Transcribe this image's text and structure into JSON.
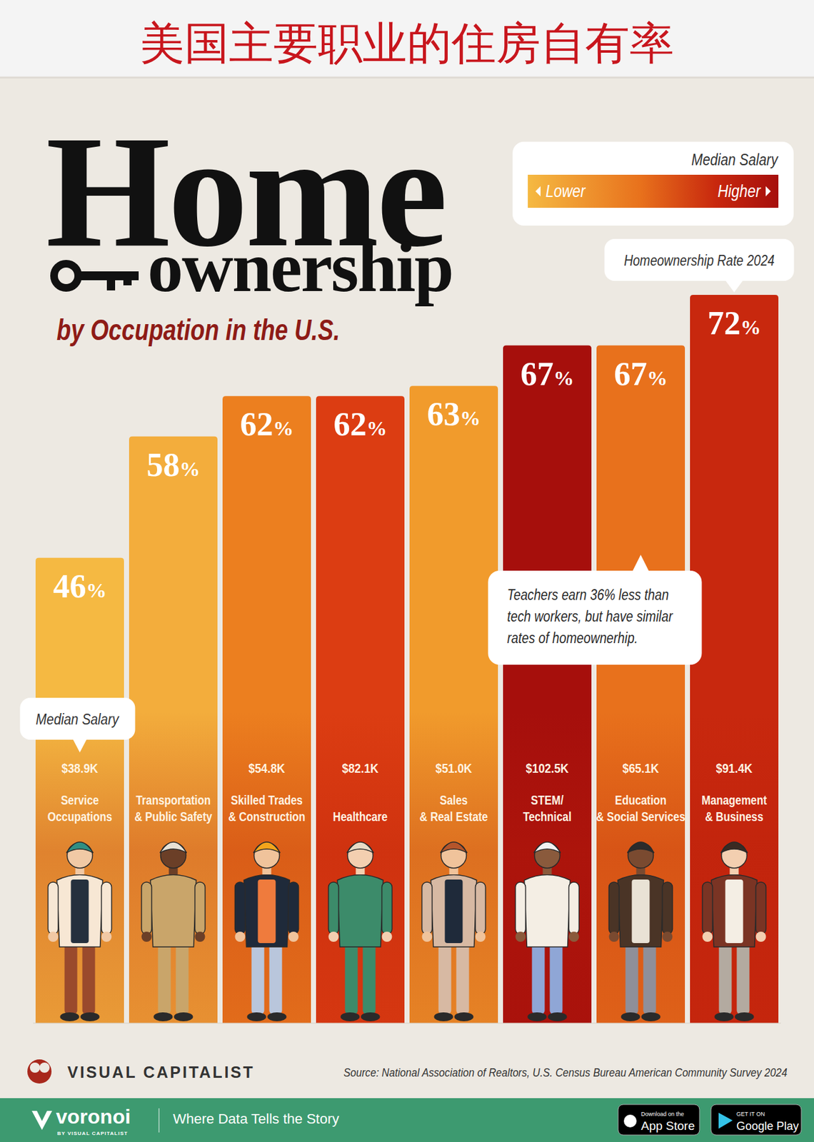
{
  "banner": {
    "title": "美国主要职业的住房自有率"
  },
  "header": {
    "title": "Home",
    "title_second_line": "ownership",
    "subtitle": "by Occupation in the U.S."
  },
  "legend": {
    "title": "Median Salary",
    "low": "Lower",
    "high": "Higher"
  },
  "chart_data": {
    "type": "bar",
    "title": "Homeownership Rate 2024",
    "categories": [
      "Service Occupations",
      "Transportation & Public Safety",
      "Skilled Trades & Construction",
      "Healthcare",
      "Sales & Real Estate",
      "STEM/Technical",
      "Education & Social Services",
      "Management & Business"
    ],
    "values": [
      46,
      58,
      62,
      62,
      63,
      67,
      67,
      72
    ],
    "value_labels": [
      "46%",
      "58%",
      "62%",
      "62%",
      "63%",
      "67%",
      "67%",
      "72%"
    ],
    "data_labels": true,
    "colors": [
      "#f5b942",
      "#f3ad3c",
      "#ec7f1f",
      "#dc3d12",
      "#f19b2c",
      "#a60f0c",
      "#e8711c",
      "#c8280e"
    ],
    "ylim": [
      0,
      72
    ],
    "tick_labels": false,
    "salary_title": "Median Salary",
    "salary_labels": [
      "$38.9K",
      null,
      "$54.8K",
      "$82.1K",
      "$51.0K",
      "$102.5K",
      "$65.1K",
      "$91.4K"
    ],
    "annotations": [
      {
        "text": "Teachers earn 36% less than tech workers, but have similar rates of homeownerhip.",
        "category": "Education & Social Services"
      }
    ]
  },
  "footer": {
    "brand": "VISUAL CAPITALIST",
    "source": "Source: National Association of Realtors, U.S. Census Bureau American Community Survey 2024"
  },
  "app_bar": {
    "logo": "voronoi",
    "logo_sub": "BY VISUAL CAPITALIST",
    "tagline": "Where Data Tells the Story",
    "app_store_small": "Download on the",
    "app_store": "App Store",
    "google_small": "GET IT ON",
    "google": "Google Play"
  }
}
